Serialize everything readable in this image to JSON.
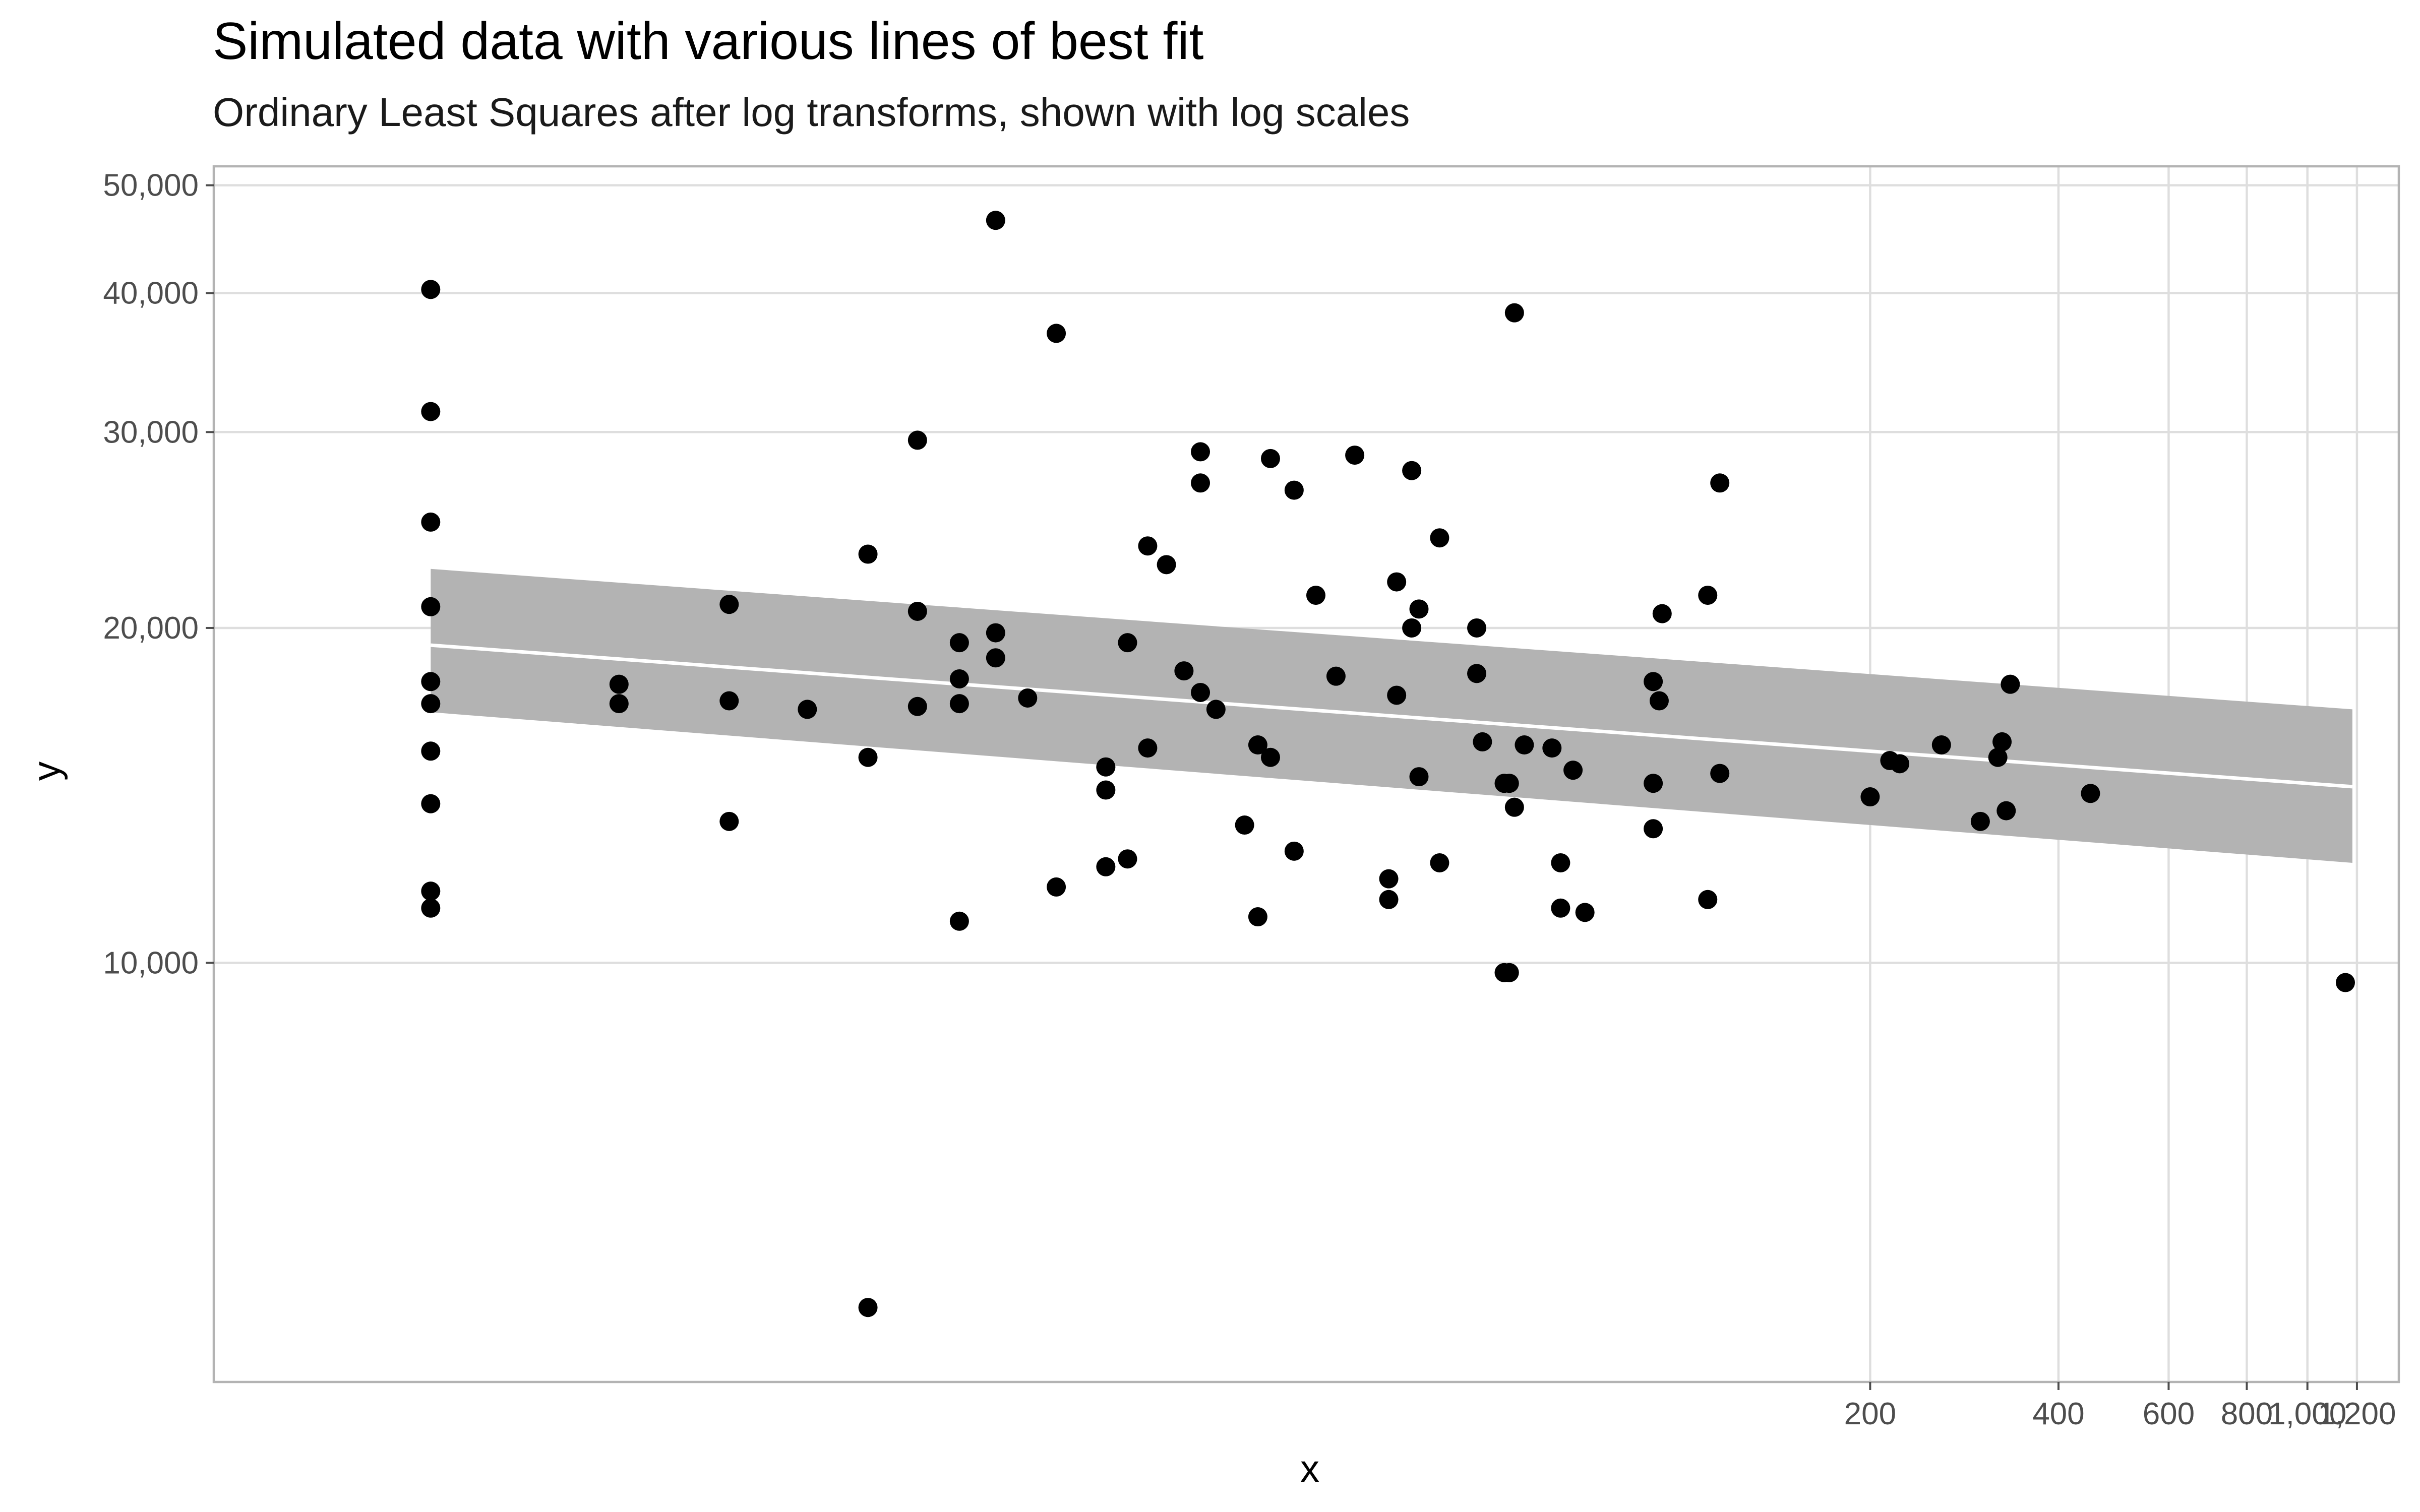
{
  "chart_data": {
    "type": "scatter",
    "title": "Simulated data with various lines of best fit",
    "subtitle": "Ordinary Least Squares after log transforms, shown with log scales",
    "xlabel": "x",
    "ylabel": "y",
    "x_scale": "log",
    "y_scale": "log",
    "xlim": [
      0.45,
      1400
    ],
    "ylim": [
      4200,
      52000
    ],
    "grid": true,
    "legend": "none",
    "x_ticks": [
      {
        "value": 200,
        "label": "200"
      },
      {
        "value": 400,
        "label": "400"
      },
      {
        "value": 600,
        "label": "600"
      },
      {
        "value": 800,
        "label": "800"
      },
      {
        "value": 1000,
        "label": "1,000"
      },
      {
        "value": 1200,
        "label": "1,200"
      }
    ],
    "y_ticks": [
      {
        "value": 10000,
        "label": "10,000"
      },
      {
        "value": 20000,
        "label": "20,000"
      },
      {
        "value": 30000,
        "label": "30,000"
      },
      {
        "value": 40000,
        "label": "40,000"
      },
      {
        "value": 50000,
        "label": "50,000"
      }
    ],
    "fit": {
      "x": [
        1,
        1180
      ],
      "y": [
        19300,
        14400
      ],
      "lower": [
        16800,
        12300
      ],
      "upper": [
        22600,
        16900
      ],
      "color": "#ffffff",
      "ribbon_color": "#b3b3b3"
    },
    "points": [
      [
        1.0,
        40300
      ],
      [
        1.0,
        31300
      ],
      [
        1.0,
        24900
      ],
      [
        1.0,
        20900
      ],
      [
        1.0,
        17900
      ],
      [
        1.0,
        17100
      ],
      [
        1.0,
        15500
      ],
      [
        1.0,
        13900
      ],
      [
        1.0,
        11600
      ],
      [
        1.0,
        11200
      ],
      [
        2.0,
        17800
      ],
      [
        2.0,
        17100
      ],
      [
        3.0,
        21000
      ],
      [
        3.0,
        17200
      ],
      [
        3.0,
        13400
      ],
      [
        4.0,
        16900
      ],
      [
        5.0,
        23300
      ],
      [
        5.0,
        15300
      ],
      [
        5.0,
        4900
      ],
      [
        6.0,
        29500
      ],
      [
        6.0,
        20700
      ],
      [
        6.0,
        17000
      ],
      [
        7.0,
        19400
      ],
      [
        7.0,
        18000
      ],
      [
        7.0,
        17100
      ],
      [
        7.0,
        10900
      ],
      [
        8.0,
        46500
      ],
      [
        8.0,
        19800
      ],
      [
        8.0,
        18800
      ],
      [
        9.0,
        17300
      ],
      [
        10.0,
        36800
      ],
      [
        10.0,
        11700
      ],
      [
        12.0,
        15000
      ],
      [
        12.0,
        14300
      ],
      [
        12.0,
        12200
      ],
      [
        13.0,
        19400
      ],
      [
        13.0,
        12400
      ],
      [
        14.0,
        23700
      ],
      [
        14.0,
        15600
      ],
      [
        15.0,
        22800
      ],
      [
        16.0,
        18300
      ],
      [
        17.0,
        28800
      ],
      [
        17.0,
        27000
      ],
      [
        17.0,
        17500
      ],
      [
        18.0,
        16900
      ],
      [
        20.0,
        13300
      ],
      [
        21.0,
        15700
      ],
      [
        21.0,
        11000
      ],
      [
        22.0,
        28400
      ],
      [
        22.0,
        15300
      ],
      [
        24.0,
        26600
      ],
      [
        24.0,
        12600
      ],
      [
        26.0,
        21400
      ],
      [
        28.0,
        18100
      ],
      [
        30.0,
        28600
      ],
      [
        34.0,
        11900
      ],
      [
        34.0,
        11400
      ],
      [
        35.0,
        22000
      ],
      [
        35.0,
        17400
      ],
      [
        37.0,
        27700
      ],
      [
        37.0,
        20000
      ],
      [
        38.0,
        20800
      ],
      [
        38.0,
        14700
      ],
      [
        41.0,
        24100
      ],
      [
        41.0,
        12300
      ],
      [
        47.0,
        20000
      ],
      [
        47.0,
        18200
      ],
      [
        48.0,
        15800
      ],
      [
        52.0,
        14500
      ],
      [
        52.0,
        9800
      ],
      [
        53.0,
        14500
      ],
      [
        53.0,
        9800
      ],
      [
        54.0,
        38400
      ],
      [
        54.0,
        13800
      ],
      [
        56.0,
        15700
      ],
      [
        62.0,
        15600
      ],
      [
        64.0,
        12300
      ],
      [
        64.0,
        11200
      ],
      [
        67.0,
        14900
      ],
      [
        70.0,
        11100
      ],
      [
        90.0,
        17900
      ],
      [
        90.0,
        14500
      ],
      [
        90.0,
        13200
      ],
      [
        92.0,
        17200
      ],
      [
        93.0,
        20600
      ],
      [
        110.0,
        21400
      ],
      [
        110.0,
        11400
      ],
      [
        115.0,
        27000
      ],
      [
        115.0,
        14800
      ],
      [
        200.0,
        14100
      ],
      [
        215.0,
        15200
      ],
      [
        223.0,
        15100
      ],
      [
        260.0,
        15700
      ],
      [
        300.0,
        13400
      ],
      [
        320.0,
        15300
      ],
      [
        325.0,
        15800
      ],
      [
        330.0,
        13700
      ],
      [
        335.0,
        17800
      ],
      [
        450.0,
        14200
      ],
      [
        1150.0,
        9600
      ]
    ]
  }
}
